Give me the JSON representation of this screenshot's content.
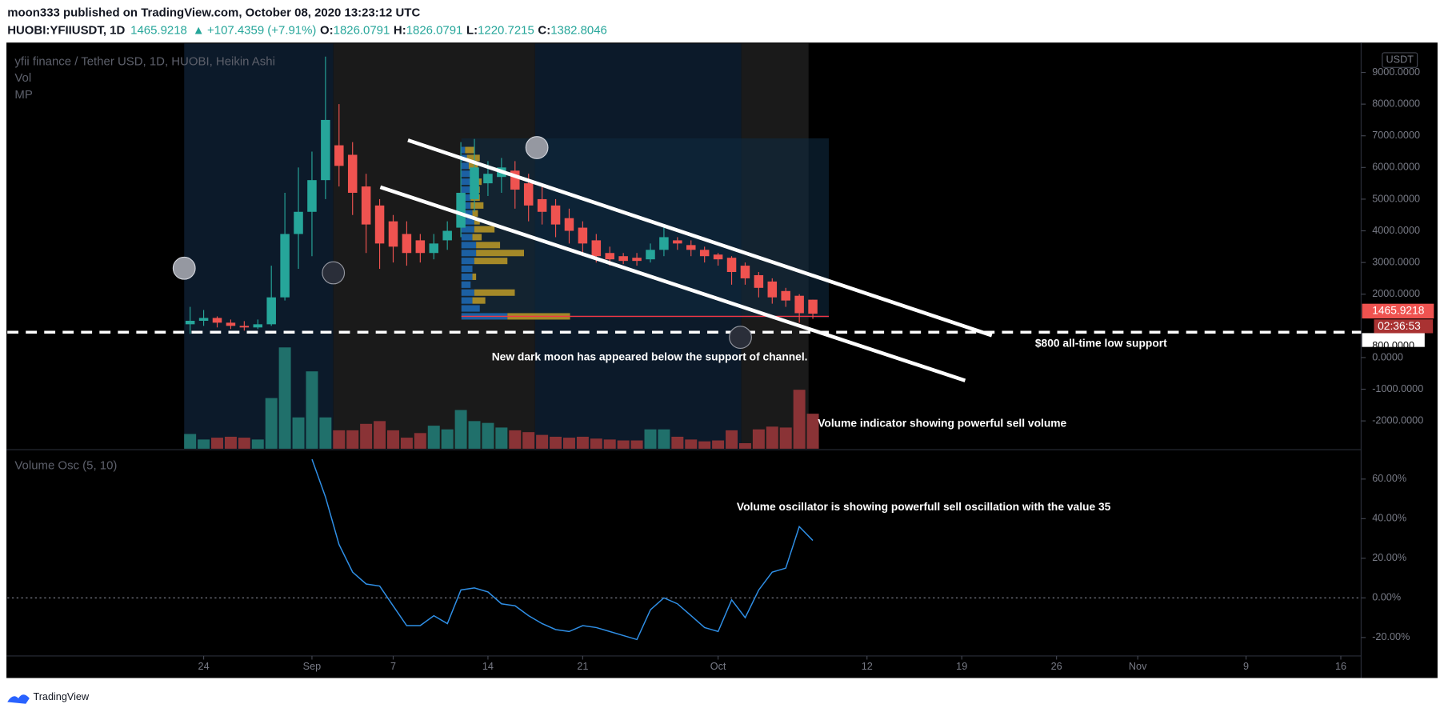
{
  "header": {
    "author_line": "moon333 published on TradingView.com, October 08, 2020 13:23:12 UTC",
    "symbol": "HUOBI:YFIIUSDT, 1D",
    "last": "1465.9218",
    "direction": "▲",
    "change": "+107.4359 (+7.91%)",
    "ohlc": [
      {
        "label": "O:",
        "value": "1826.0791"
      },
      {
        "label": "H:",
        "value": "1826.0791"
      },
      {
        "label": "L:",
        "value": "1220.7215"
      },
      {
        "label": "C:",
        "value": "1382.8046"
      }
    ]
  },
  "footer": {
    "brand": "TradingView"
  },
  "chart_data": [
    {
      "type": "candlestick",
      "title": "yfii finance / Tether USD, 1D, HUOBI, Heikin Ashi",
      "axis_unit": "USDT",
      "xlim": [
        "2020-08-09T12:00:00Z",
        "2020-11-17T12:00:00Z"
      ],
      "x": [
        "2020-08-23",
        "2020-08-24",
        "2020-08-25",
        "2020-08-26",
        "2020-08-27",
        "2020-08-28",
        "2020-08-29",
        "2020-08-30",
        "2020-08-31",
        "2020-09-01",
        "2020-09-02",
        "2020-09-03",
        "2020-09-04",
        "2020-09-05",
        "2020-09-06",
        "2020-09-07",
        "2020-09-08",
        "2020-09-09",
        "2020-09-10",
        "2020-09-11",
        "2020-09-12",
        "2020-09-13",
        "2020-09-14",
        "2020-09-15",
        "2020-09-16",
        "2020-09-17",
        "2020-09-18",
        "2020-09-19",
        "2020-09-20",
        "2020-09-21",
        "2020-09-22",
        "2020-09-23",
        "2020-09-24",
        "2020-09-25",
        "2020-09-26",
        "2020-09-27",
        "2020-09-28",
        "2020-09-29",
        "2020-09-30",
        "2020-10-01",
        "2020-10-02",
        "2020-10-03",
        "2020-10-04",
        "2020-10-05",
        "2020-10-06",
        "2020-10-07",
        "2020-10-08"
      ],
      "open": [
        1050,
        1160,
        1250,
        1100,
        1000,
        950,
        1050,
        1900,
        3900,
        4600,
        5600,
        6700,
        6400,
        5400,
        4800,
        4300,
        3900,
        3700,
        3300,
        3700,
        4100,
        5000,
        5500,
        5700,
        5900,
        5500,
        5000,
        4800,
        4400,
        4100,
        3700,
        3300,
        3200,
        3150,
        3100,
        3400,
        3700,
        3550,
        3400,
        3250,
        3150,
        2900,
        2600,
        2400,
        2100,
        1950,
        1826.0791
      ],
      "high": [
        1600,
        1500,
        1300,
        1200,
        1150,
        1200,
        2900,
        5200,
        6000,
        6500,
        9500,
        8000,
        6800,
        5800,
        5000,
        4500,
        4300,
        3900,
        3900,
        4300,
        6800,
        6900,
        6200,
        6300,
        6200,
        5800,
        5400,
        5000,
        4700,
        4300,
        3900,
        3500,
        3300,
        3300,
        3600,
        4100,
        3800,
        3700,
        3500,
        3300,
        3200,
        3000,
        2700,
        2500,
        2200,
        2000,
        1826.0791
      ],
      "low": [
        750,
        1000,
        950,
        900,
        850,
        900,
        1000,
        1800,
        2800,
        3200,
        5000,
        5400,
        4500,
        3300,
        2800,
        3000,
        2900,
        3000,
        3100,
        3400,
        3800,
        4600,
        5100,
        5200,
        4700,
        4300,
        4200,
        3800,
        3600,
        3200,
        3000,
        2900,
        2950,
        2900,
        3000,
        3200,
        3400,
        3200,
        3000,
        2900,
        2300,
        2300,
        1900,
        1700,
        1600,
        1100,
        1220.7215
      ],
      "close": [
        1160,
        1250,
        1100,
        1000,
        950,
        1050,
        1900,
        3900,
        4600,
        5600,
        7500,
        6050,
        5200,
        4200,
        3600,
        3500,
        3300,
        3300,
        3600,
        4000,
        5200,
        6000,
        5800,
        6000,
        5300,
        4800,
        4600,
        4200,
        4000,
        3600,
        3200,
        3100,
        3050,
        3050,
        3400,
        3800,
        3600,
        3400,
        3200,
        3100,
        2700,
        2500,
        2200,
        1900,
        1800,
        1400,
        1382.8046
      ],
      "colors": {
        "up": "#26a69a",
        "down": "#ef5350"
      },
      "ylim": [
        -2878,
        9913
      ],
      "yticks": [
        {
          "value": 9000,
          "label": "9000.0000"
        },
        {
          "value": 8000,
          "label": "8000.0000"
        },
        {
          "value": 7000,
          "label": "7000.0000"
        },
        {
          "value": 6000,
          "label": "6000.0000"
        },
        {
          "value": 5000,
          "label": "5000.0000"
        },
        {
          "value": 4000,
          "label": "4000.0000"
        },
        {
          "value": 3000,
          "label": "3000.0000"
        },
        {
          "value": 2000,
          "label": "2000.0000"
        },
        {
          "value": 0,
          "label": "0.0000"
        },
        {
          "value": -1000,
          "label": "-1000.0000"
        },
        {
          "value": -2000,
          "label": "-2000.0000"
        }
      ],
      "last_price": {
        "value": 1465.9218,
        "label": "1465.9218"
      },
      "countdown": "02:36:53",
      "support": {
        "value": 800,
        "label": "800.0000"
      },
      "volume_profile": {
        "title": "MP",
        "prices": [
          1300,
          1550,
          1800,
          2050,
          2300,
          2550,
          2800,
          3050,
          3300,
          3550,
          3800,
          4050,
          4300,
          4550,
          4800,
          5050,
          5300,
          5550,
          5800,
          6050,
          6300,
          6550
        ],
        "up": [
          50,
          20,
          12,
          14,
          10,
          12,
          12,
          14,
          16,
          16,
          12,
          14,
          14,
          12,
          10,
          10,
          10,
          10,
          10,
          8,
          6,
          4
        ],
        "down": [
          68,
          0,
          14,
          44,
          0,
          4,
          0,
          36,
          52,
          26,
          10,
          22,
          6,
          6,
          14,
          10,
          10,
          12,
          8,
          10,
          14,
          10
        ],
        "colors": {
          "up": "#1f6fc0",
          "down": "#c9a227"
        }
      },
      "annotations": [
        "New dark moon has appeared below the support of channel.",
        "$800 all-time low support"
      ]
    },
    {
      "type": "bar",
      "title": "Vol",
      "xlim": [
        "2020-08-09T12:00:00Z",
        "2020-11-17T12:00:00Z"
      ],
      "x": [
        "2020-08-23",
        "2020-08-24",
        "2020-08-25",
        "2020-08-26",
        "2020-08-27",
        "2020-08-28",
        "2020-08-29",
        "2020-08-30",
        "2020-08-31",
        "2020-09-01",
        "2020-09-02",
        "2020-09-03",
        "2020-09-04",
        "2020-09-05",
        "2020-09-06",
        "2020-09-07",
        "2020-09-08",
        "2020-09-09",
        "2020-09-10",
        "2020-09-11",
        "2020-09-12",
        "2020-09-13",
        "2020-09-14",
        "2020-09-15",
        "2020-09-16",
        "2020-09-17",
        "2020-09-18",
        "2020-09-19",
        "2020-09-20",
        "2020-09-21",
        "2020-09-22",
        "2020-09-23",
        "2020-09-24",
        "2020-09-25",
        "2020-09-26",
        "2020-09-27",
        "2020-09-28",
        "2020-09-29",
        "2020-09-30",
        "2020-10-01",
        "2020-10-02",
        "2020-10-03",
        "2020-10-04",
        "2020-10-05",
        "2020-10-06",
        "2020-10-07",
        "2020-10-08"
      ],
      "values": [
        16,
        10,
        12,
        13,
        12,
        10,
        55,
        110,
        34,
        84,
        34,
        20,
        20,
        27,
        30,
        20,
        12,
        17,
        25,
        21,
        42,
        30,
        28,
        23,
        20,
        18,
        15,
        13,
        12,
        13,
        11,
        10,
        9,
        9,
        21,
        21,
        13,
        10,
        8,
        9,
        20,
        6,
        21,
        24,
        23,
        64,
        38
      ],
      "colors": {
        "up": "#20706b",
        "down": "#8a3336"
      },
      "annotation": "Volume indicator showing powerful sell volume"
    },
    {
      "type": "line",
      "title": "Volume Osc (5, 10)",
      "color": "#2f8fe6",
      "xlim": [
        "2020-08-09T12:00:00Z",
        "2020-11-17T12:00:00Z"
      ],
      "x": [
        "2020-09-01",
        "2020-09-02",
        "2020-09-03",
        "2020-09-04",
        "2020-09-05",
        "2020-09-06",
        "2020-09-07",
        "2020-09-08",
        "2020-09-09",
        "2020-09-10",
        "2020-09-11",
        "2020-09-12",
        "2020-09-13",
        "2020-09-14",
        "2020-09-15",
        "2020-09-16",
        "2020-09-17",
        "2020-09-18",
        "2020-09-19",
        "2020-09-20",
        "2020-09-21",
        "2020-09-22",
        "2020-09-23",
        "2020-09-24",
        "2020-09-25",
        "2020-09-26",
        "2020-09-27",
        "2020-09-28",
        "2020-09-29",
        "2020-09-30",
        "2020-10-01",
        "2020-10-02",
        "2020-10-03",
        "2020-10-04",
        "2020-10-05",
        "2020-10-06",
        "2020-10-07",
        "2020-10-08"
      ],
      "values": [
        70,
        51,
        27,
        13,
        7,
        6,
        -4,
        -14,
        -14,
        -9,
        -13,
        4,
        5,
        3,
        -3,
        -4,
        -9,
        -13,
        -16,
        -17,
        -14,
        -15,
        -17,
        -19,
        -21,
        -6,
        0,
        -3,
        -9,
        -15,
        -17,
        -1,
        -10,
        4,
        13,
        15,
        36,
        29
      ],
      "ylim": [
        -29.3,
        74.4
      ],
      "yticks": [
        {
          "value": 60,
          "label": "60.00%"
        },
        {
          "value": 40,
          "label": "40.00%"
        },
        {
          "value": 20,
          "label": "20.00%"
        },
        {
          "value": 0,
          "label": "0.00%"
        },
        {
          "value": -20,
          "label": "-20.00%"
        }
      ],
      "hline": 0,
      "xticks": [
        {
          "value": "2020-08-24",
          "label": "24"
        },
        {
          "value": "2020-09-01",
          "label": "Sep"
        },
        {
          "value": "2020-09-07",
          "label": "7"
        },
        {
          "value": "2020-09-14",
          "label": "14"
        },
        {
          "value": "2020-09-21",
          "label": "21"
        },
        {
          "value": "2020-10-01",
          "label": "Oct"
        },
        {
          "value": "2020-10-12",
          "label": "12"
        },
        {
          "value": "2020-10-19",
          "label": "19"
        },
        {
          "value": "2020-10-26",
          "label": "26"
        },
        {
          "value": "2020-11-01",
          "label": "Nov"
        },
        {
          "value": "2020-11-09",
          "label": "9"
        },
        {
          "value": "2020-11-16",
          "label": "16"
        }
      ],
      "annotation": "Volume oscillator is showing powerfull sell oscillation with the value 35"
    }
  ]
}
